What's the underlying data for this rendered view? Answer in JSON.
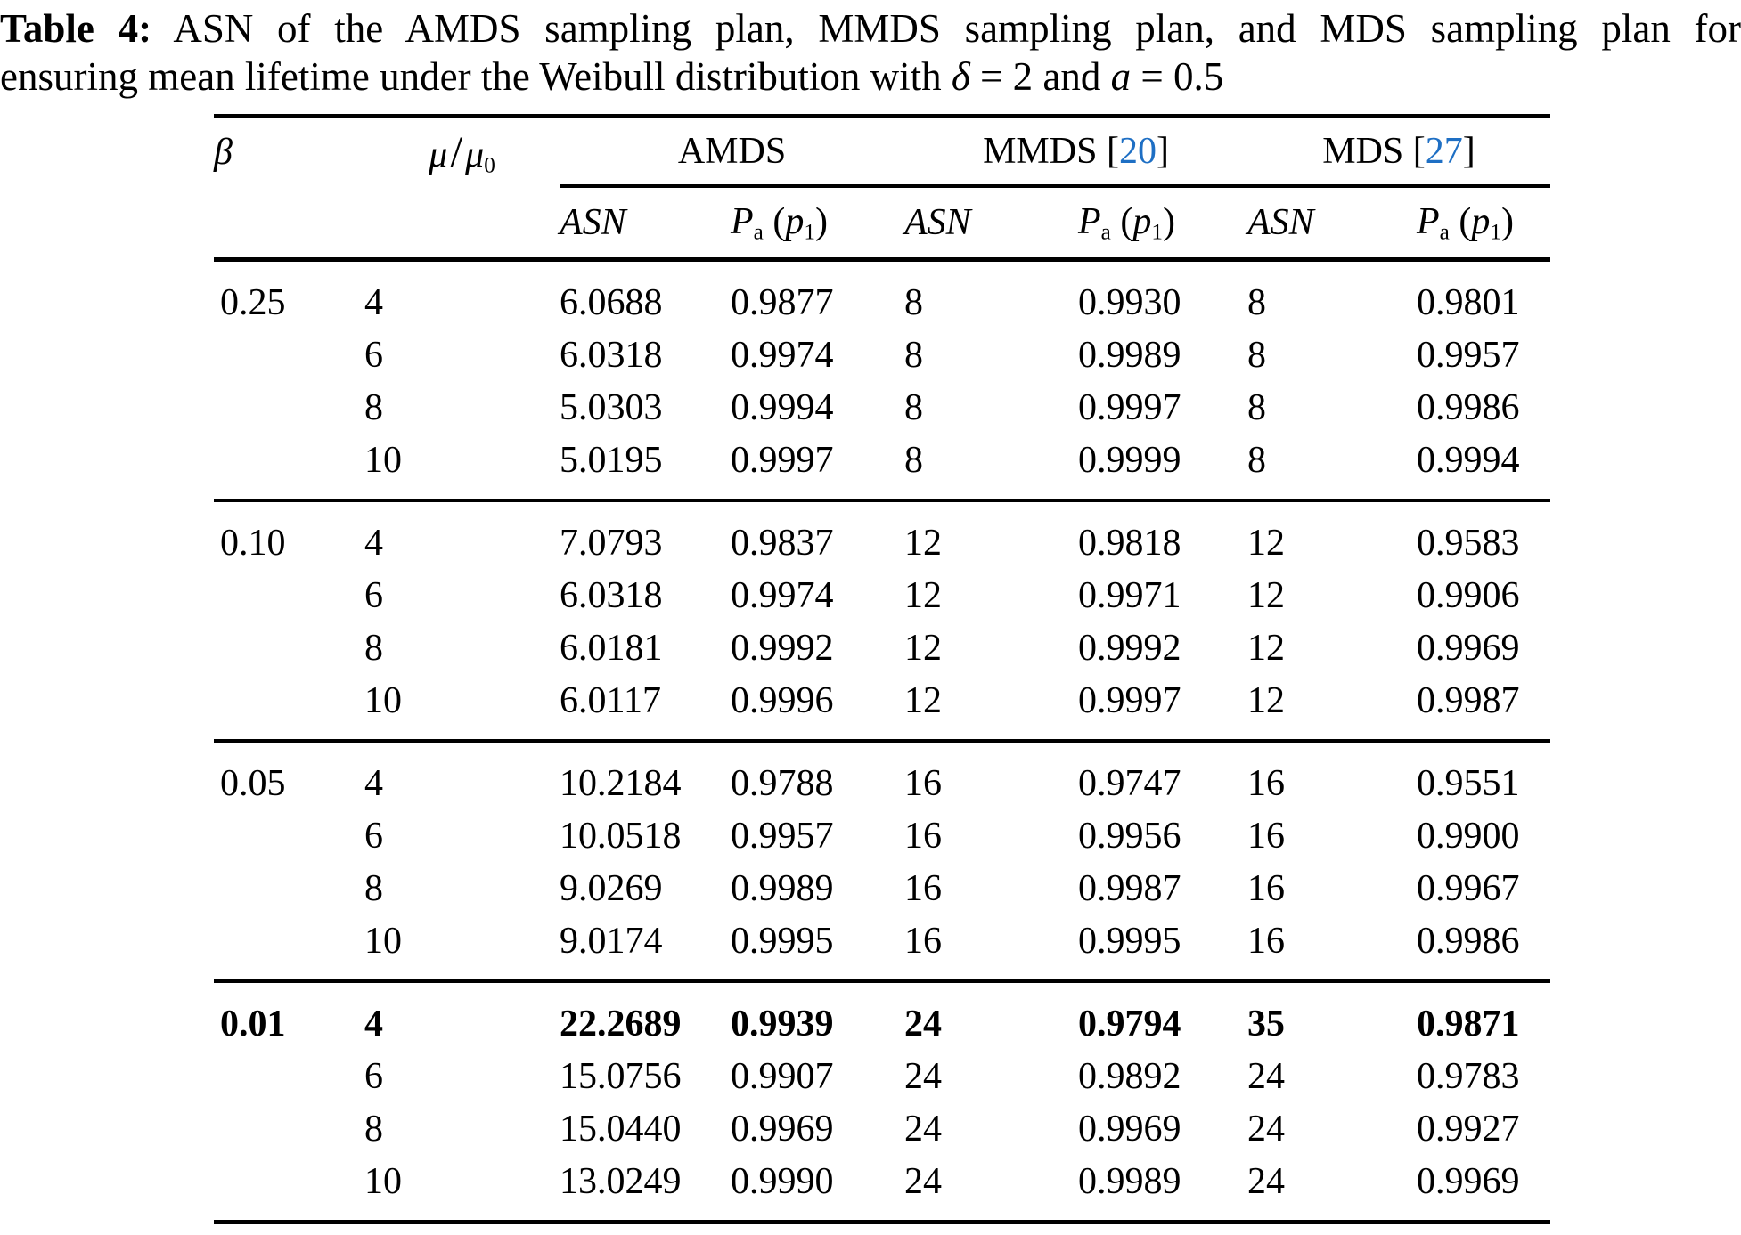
{
  "colors": {
    "background": "#FFFFFF",
    "text": "#000000",
    "citation_link": "#1E6FC4",
    "rule": "#000000"
  },
  "caption": {
    "line1": [
      {
        "t": "Table 4:",
        "b": 1
      },
      {
        "t": " ASN of the AMDS sampling plan, MMDS sampling plan, and MDS sampling plan for"
      }
    ],
    "line2": [
      {
        "t": "ensuring mean lifetime under the Weibull distribution with "
      },
      {
        "t": "δ",
        "i": 1
      },
      {
        "t": " = 2 and "
      },
      {
        "t": "a",
        "i": 1
      },
      {
        "t": " = 0.5"
      }
    ]
  },
  "table": {
    "col_headers": {
      "beta": [
        {
          "t": "β",
          "i": 1
        }
      ],
      "mu_ratio": [
        {
          "t": "μ",
          "i": 1
        },
        {
          "t": "/",
          "slash": 1
        },
        {
          "t": "μ",
          "i": 1
        },
        {
          "t": "0",
          "sub": 1
        }
      ],
      "groups": [
        {
          "name": "amds",
          "label": [
            {
              "t": "AMDS"
            }
          ]
        },
        {
          "name": "mmds",
          "label": [
            {
              "t": "MMDS ["
            },
            {
              "t": "20",
              "link": 1,
              "name": "citation-link-20"
            },
            {
              "t": "]"
            }
          ]
        },
        {
          "name": "mds",
          "label": [
            {
              "t": "MDS ["
            },
            {
              "t": "27",
              "link": 1,
              "name": "citation-link-27"
            },
            {
              "t": "]"
            }
          ]
        }
      ],
      "asn": [
        {
          "t": "ASN",
          "i": 1
        }
      ],
      "pa": [
        {
          "t": "P",
          "i": 1
        },
        {
          "t": "a",
          "sub": 1
        },
        {
          "t": " ("
        },
        {
          "t": "p",
          "i": 1
        },
        {
          "t": "1",
          "sub": 1
        },
        {
          "t": ")"
        }
      ]
    },
    "blocks": [
      {
        "beta": "0.25",
        "rows": [
          [
            "4",
            "6.0688",
            "0.9877",
            "8",
            "0.9930",
            "8",
            "0.9801"
          ],
          [
            "6",
            "6.0318",
            "0.9974",
            "8",
            "0.9989",
            "8",
            "0.9957"
          ],
          [
            "8",
            "5.0303",
            "0.9994",
            "8",
            "0.9997",
            "8",
            "0.9986"
          ],
          [
            "10",
            "5.0195",
            "0.9997",
            "8",
            "0.9999",
            "8",
            "0.9994"
          ]
        ]
      },
      {
        "beta": "0.10",
        "rows": [
          [
            "4",
            "7.0793",
            "0.9837",
            "12",
            "0.9818",
            "12",
            "0.9583"
          ],
          [
            "6",
            "6.0318",
            "0.9974",
            "12",
            "0.9971",
            "12",
            "0.9906"
          ],
          [
            "8",
            "6.0181",
            "0.9992",
            "12",
            "0.9992",
            "12",
            "0.9969"
          ],
          [
            "10",
            "6.0117",
            "0.9996",
            "12",
            "0.9997",
            "12",
            "0.9987"
          ]
        ]
      },
      {
        "beta": "0.05",
        "rows": [
          [
            "4",
            "10.2184",
            "0.9788",
            "16",
            "0.9747",
            "16",
            "0.9551"
          ],
          [
            "6",
            "10.0518",
            "0.9957",
            "16",
            "0.9956",
            "16",
            "0.9900"
          ],
          [
            "8",
            "9.0269",
            "0.9989",
            "16",
            "0.9987",
            "16",
            "0.9967"
          ],
          [
            "10",
            "9.0174",
            "0.9995",
            "16",
            "0.9995",
            "16",
            "0.9986"
          ]
        ]
      },
      {
        "beta": "0.01",
        "bold_row": 0,
        "rows": [
          [
            "4",
            "22.2689",
            "0.9939",
            "24",
            "0.9794",
            "35",
            "0.9871"
          ],
          [
            "6",
            "15.0756",
            "0.9907",
            "24",
            "0.9892",
            "24",
            "0.9783"
          ],
          [
            "8",
            "15.0440",
            "0.9969",
            "24",
            "0.9969",
            "24",
            "0.9927"
          ],
          [
            "10",
            "13.0249",
            "0.9990",
            "24",
            "0.9989",
            "24",
            "0.9969"
          ]
        ]
      }
    ]
  }
}
